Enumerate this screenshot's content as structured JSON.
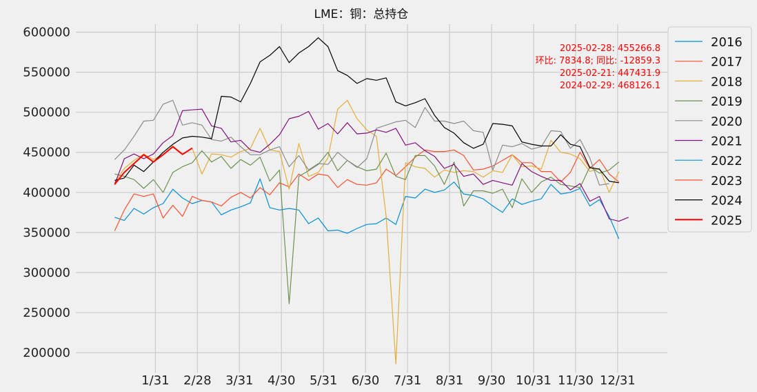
{
  "chart_data": {
    "type": "line",
    "title": "LME：铜：总持仓",
    "xlabel": "",
    "ylabel": "",
    "x_tick_labels": [
      "1/31",
      "2/28",
      "3/31",
      "4/30",
      "5/31",
      "6/30",
      "7/31",
      "8/31",
      "9/30",
      "10/31",
      "11/30",
      "12/31"
    ],
    "y_tick_labels": [
      "200000",
      "250000",
      "300000",
      "350000",
      "400000",
      "450000",
      "500000",
      "550000",
      "600000"
    ],
    "ylim": [
      175000,
      610000
    ],
    "xlim": [
      -4,
      57
    ],
    "grid": true,
    "legend_position": "right-outside-top",
    "annotation_lines": [
      "2025-02-28: 455266.8",
      "环比: 7834.8; 同比: -12859.3",
      "2025-02-21: 447431.9",
      "2024-02-29: 468126.1"
    ],
    "series": [
      {
        "name": "2016",
        "color": "#008fd5",
        "width": 1.2,
        "values": [
          369000,
          365000,
          380000,
          373000,
          381000,
          386000,
          404000,
          393000,
          386000,
          390000,
          388000,
          372000,
          378000,
          382000,
          387000,
          417000,
          381000,
          378000,
          380000,
          378000,
          361000,
          368000,
          352000,
          353000,
          349000,
          355000,
          360000,
          361000,
          368000,
          360000,
          395000,
          393000,
          404000,
          400000,
          403000,
          413000,
          398000,
          396000,
          392000,
          383000,
          375000,
          392000,
          385000,
          389000,
          392000,
          410000,
          398000,
          400000,
          405000,
          383000,
          391000,
          370000,
          342000
        ]
      },
      {
        "name": "2017",
        "color": "#fc4f30",
        "width": 1.2,
        "values": [
          352000,
          378000,
          398000,
          395000,
          398000,
          368000,
          384000,
          370000,
          395000,
          390000,
          388000,
          383000,
          394000,
          400000,
          393000,
          406000,
          397000,
          412000,
          407000,
          423000,
          415000,
          423000,
          421000,
          406000,
          416000,
          410000,
          409000,
          412000,
          429000,
          421000,
          432000,
          444000,
          453000,
          451000,
          451000,
          453000,
          446000,
          428000,
          429000,
          433000,
          440000,
          447000,
          437000,
          437000,
          426000,
          426000,
          413000,
          425000,
          450000,
          430000,
          441000,
          423000,
          413000
        ]
      },
      {
        "name": "2018",
        "color": "#e5ae38",
        "width": 1.2,
        "values": [
          412000,
          430000,
          440000,
          448000,
          441000,
          447000,
          458000,
          448000,
          455000,
          423000,
          448000,
          447000,
          444000,
          451000,
          455000,
          480000,
          453000,
          451000,
          404000,
          461000,
          420000,
          425000,
          443000,
          504000,
          515000,
          492000,
          478000,
          470000,
          370000,
          186000,
          437000,
          432000,
          430000,
          419000,
          428000,
          425000,
          427000,
          426000,
          419000,
          427000,
          425000,
          447000,
          432000,
          433000,
          429000,
          465000,
          450000,
          448000,
          442000,
          426000,
          430000,
          400000,
          426000
        ]
      },
      {
        "name": "2019",
        "color": "#6d904f",
        "width": 1.2,
        "values": [
          423000,
          420000,
          416000,
          405000,
          416000,
          400000,
          425000,
          432000,
          437000,
          452000,
          438000,
          445000,
          430000,
          441000,
          434000,
          444000,
          414000,
          428000,
          261000,
          420000,
          427000,
          435000,
          450000,
          427000,
          440000,
          432000,
          427000,
          429000,
          449000,
          420000,
          416000,
          446000,
          446000,
          433000,
          410000,
          438000,
          383000,
          402000,
          402000,
          399000,
          404000,
          381000,
          417000,
          400000,
          413000,
          419000,
          410000,
          408000,
          406000,
          432000,
          424000,
          428000,
          438000
        ]
      },
      {
        "name": "2020",
        "color": "#8b8b8b",
        "width": 1.2,
        "values": [
          441000,
          453000,
          470000,
          489000,
          490000,
          510000,
          515000,
          484000,
          487000,
          484000,
          466000,
          464000,
          469000,
          457000,
          447000,
          447000,
          453000,
          457000,
          432000,
          446000,
          428000,
          436000,
          435000,
          450000,
          440000,
          431000,
          442000,
          480000,
          484000,
          488000,
          490000,
          481000,
          506000,
          489000,
          489000,
          486000,
          489000,
          477000,
          475000,
          428000,
          459000,
          457000,
          461000,
          454000,
          457000,
          477000,
          476000,
          455000,
          466000,
          443000,
          409000,
          411000
        ]
      },
      {
        "name": "2021",
        "color": "#810f7c",
        "width": 1.2,
        "values": [
          410000,
          442000,
          448000,
          442000,
          448000,
          462000,
          471000,
          502000,
          503000,
          504000,
          483000,
          480000,
          463000,
          465000,
          453000,
          450000,
          460000,
          472000,
          492000,
          495000,
          501000,
          479000,
          486000,
          473000,
          487000,
          473000,
          474000,
          478000,
          475000,
          480000,
          459000,
          462000,
          452000,
          445000,
          430000,
          435000,
          420000,
          423000,
          410000,
          415000,
          412000,
          409000,
          436000,
          426000,
          420000,
          415000,
          415000,
          403000,
          411000,
          389000,
          395000,
          367000,
          364000,
          369000
        ]
      },
      {
        "name": "2022",
        "color": "#008fd5",
        "width": 1.2,
        "values": []
      },
      {
        "name": "2023",
        "color": "#fc4f30",
        "width": 1.2,
        "values": []
      },
      {
        "name": "2024",
        "color": "#000000",
        "width": 1.2,
        "values": [
          415000,
          418000,
          434000,
          426000,
          438000,
          450000,
          460000,
          468000,
          470000,
          469000,
          467000,
          520000,
          519000,
          513000,
          536000,
          563000,
          571000,
          582000,
          562000,
          574000,
          582000,
          593000,
          582000,
          552000,
          546000,
          536000,
          542000,
          540000,
          543000,
          513000,
          508000,
          512000,
          517000,
          496000,
          481000,
          474000,
          462000,
          455000,
          460000,
          486000,
          485000,
          483000,
          463000,
          460000,
          458000,
          458000,
          472000,
          460000,
          457000,
          431000,
          429000,
          414000,
          412000
        ]
      },
      {
        "name": "2025",
        "color": "#ff0000",
        "width": 2.0,
        "values": [
          410000,
          425000,
          436000,
          447000,
          438000,
          447000,
          457000,
          447431.9,
          455266.8
        ]
      }
    ]
  }
}
